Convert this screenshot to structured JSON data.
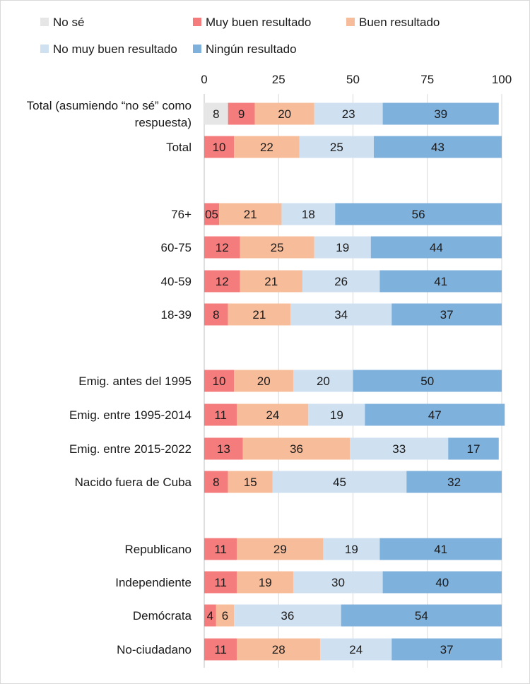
{
  "chart_data": {
    "type": "bar",
    "orientation": "horizontal",
    "stacked": true,
    "xlim": [
      0,
      100
    ],
    "x_ticks": [
      0,
      25,
      50,
      75,
      100
    ],
    "grid": true,
    "legend_position": "top",
    "series": [
      {
        "name": "No sé",
        "color": "#e6e6e6"
      },
      {
        "name": "Muy buen resultado",
        "color": "#f47c7c"
      },
      {
        "name": "Buen resultado",
        "color": "#f7bc9a"
      },
      {
        "name": "No  muy buen resultado",
        "color": "#cfe0f1"
      },
      {
        "name": "Ningún resultado",
        "color": "#7fb1dd"
      }
    ],
    "rows": [
      {
        "label": [
          "Total (asumiendo “no sé” como",
          "respuesta)"
        ],
        "values": [
          8,
          9,
          20,
          23,
          39
        ],
        "data_labels": [
          "8",
          "9",
          "20",
          "23",
          "39"
        ]
      },
      {
        "label": [
          "Total"
        ],
        "values": [
          0,
          10,
          22,
          25,
          43
        ],
        "data_labels": [
          "",
          "10",
          "22",
          "25",
          "43"
        ]
      },
      {
        "label": [
          "76+"
        ],
        "values": [
          0,
          5,
          21,
          18,
          56
        ],
        "data_labels": [
          "",
          "05",
          "21",
          "18",
          "56"
        ]
      },
      {
        "label": [
          "60-75"
        ],
        "values": [
          0,
          12,
          25,
          19,
          44
        ],
        "data_labels": [
          "",
          "12",
          "25",
          "19",
          "44"
        ]
      },
      {
        "label": [
          "40-59"
        ],
        "values": [
          0,
          12,
          21,
          26,
          41
        ],
        "data_labels": [
          "",
          "12",
          "21",
          "26",
          "41"
        ]
      },
      {
        "label": [
          "18-39"
        ],
        "values": [
          0,
          8,
          21,
          34,
          37
        ],
        "data_labels": [
          "",
          "8",
          "21",
          "34",
          "37"
        ]
      },
      {
        "label": [
          "Emig. antes del 1995"
        ],
        "values": [
          0,
          10,
          20,
          20,
          50
        ],
        "data_labels": [
          "",
          "10",
          "20",
          "20",
          "50"
        ]
      },
      {
        "label": [
          "Emig. entre 1995-2014"
        ],
        "values": [
          0,
          11,
          24,
          19,
          47
        ],
        "data_labels": [
          "",
          "11",
          "24",
          "19",
          "47"
        ]
      },
      {
        "label": [
          "Emig. entre 2015-2022"
        ],
        "values": [
          0,
          13,
          36,
          33,
          17
        ],
        "data_labels": [
          "",
          "13",
          "36",
          "33",
          "17"
        ]
      },
      {
        "label": [
          "Nacido fuera de Cuba"
        ],
        "values": [
          0,
          8,
          15,
          45,
          32
        ],
        "data_labels": [
          "",
          "8",
          "15",
          "45",
          "32"
        ]
      },
      {
        "label": [
          "Republicano"
        ],
        "values": [
          0,
          11,
          29,
          19,
          41
        ],
        "data_labels": [
          "",
          "11",
          "29",
          "19",
          "41"
        ]
      },
      {
        "label": [
          "Independiente"
        ],
        "values": [
          0,
          11,
          19,
          30,
          40
        ],
        "data_labels": [
          "",
          "11",
          "19",
          "30",
          "40"
        ]
      },
      {
        "label": [
          "Demócrata"
        ],
        "values": [
          0,
          4,
          6,
          36,
          54
        ],
        "data_labels": [
          "",
          "4",
          "6",
          "36",
          "54"
        ]
      },
      {
        "label": [
          "No-ciudadano"
        ],
        "values": [
          0,
          11,
          28,
          24,
          37
        ],
        "data_labels": [
          "",
          "11",
          "28",
          "24",
          "37"
        ]
      }
    ]
  }
}
